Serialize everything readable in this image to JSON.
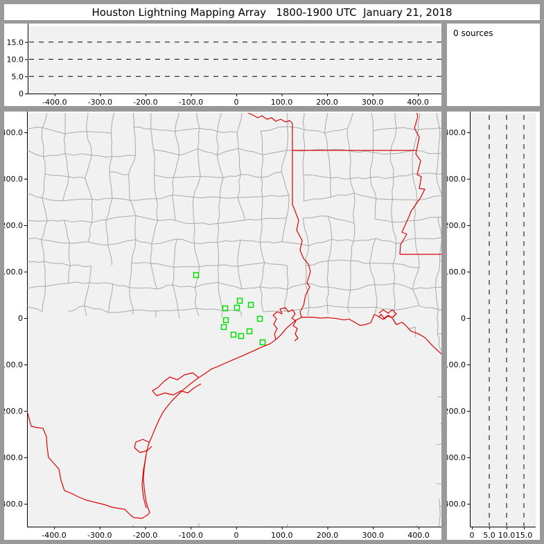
{
  "title": "Houston Lightning Mapping Array   1800-1900 UTC  January 21, 2018",
  "status": {
    "sources_label": "0 sources"
  },
  "colors": {
    "frame": "#999999",
    "panel_bg": "#ffffff",
    "plot_bg": "#f1f1f1",
    "axis": "#000000",
    "grid_dash": "#000000",
    "county": "#a8a8a8",
    "state_border": "#dd0000",
    "station": "#00dd00"
  },
  "alt_ew_panel": {
    "x_ticks": [
      -400,
      -300,
      -200,
      -100,
      0,
      100,
      200,
      300,
      400
    ],
    "x_tick_labels": [
      "-400.0",
      "-300.0",
      "-200.0",
      "-100.0",
      "0",
      "100.0",
      "200.0",
      "300.0",
      "400.0"
    ],
    "y_ticks": [
      0,
      5,
      10,
      15
    ],
    "y_tick_labels": [
      "0",
      "5.0",
      "10.0",
      "15.0"
    ],
    "dash_levels": [
      5,
      10,
      15
    ],
    "x_range": [
      -459.3,
      451.7
    ],
    "y_range": [
      0,
      19.6
    ]
  },
  "alt_ns_panel": {
    "x_ticks": [
      0,
      5,
      10,
      15
    ],
    "x_tick_labels": [
      "0",
      "5.0",
      "10.0",
      "15.0"
    ],
    "y_ticks": [
      400,
      300,
      200,
      100,
      0,
      -100,
      -200,
      -300,
      -400
    ],
    "y_tick_labels": [
      "400.0",
      "300.0",
      "200.0",
      "100.0",
      "0",
      "-100.0",
      "-200.0",
      "-300.0",
      "-400.0"
    ],
    "dash_levels": [
      5,
      10,
      15
    ],
    "x_range": [
      -0.6,
      18.4
    ],
    "y_range": [
      -449.3,
      441.8
    ]
  },
  "map_panel": {
    "x_ticks": [
      -400,
      -300,
      -200,
      -100,
      0,
      100,
      200,
      300,
      400
    ],
    "x_tick_labels": [
      "-400.0",
      "-300.0",
      "-200.0",
      "-100.0",
      "0",
      "100.0",
      "200.0",
      "300.0",
      "400.0"
    ],
    "y_ticks": [
      400,
      300,
      200,
      100,
      0,
      -100,
      -200,
      -300,
      -400
    ],
    "y_tick_labels": [
      "400.0",
      "300.0",
      "200.0",
      "100.0",
      "0",
      "-100.0",
      "-200.0",
      "-300.0",
      "-400.0"
    ],
    "x_range": [
      -459.3,
      451.7
    ],
    "y_range": [
      -449.3,
      441.8
    ],
    "stations_km": [
      [
        -88.2,
        92.5
      ],
      [
        7.6,
        37.3
      ],
      [
        31.9,
        28.4
      ],
      [
        1.5,
        22.4
      ],
      [
        -24.3,
        20.9
      ],
      [
        -22.8,
        -4.5
      ],
      [
        -27.4,
        -19.4
      ],
      [
        -6.1,
        -35.8
      ],
      [
        28.9,
        -28.4
      ],
      [
        10.6,
        -38.8
      ],
      [
        51.7,
        -1.5
      ],
      [
        57.8,
        -52.2
      ]
    ],
    "state_borders_km": [
      [
        [
          25.9,
          441.8
        ],
        [
          36.5,
          437.3
        ],
        [
          47.1,
          431.3
        ],
        [
          56.3,
          435.8
        ],
        [
          66.9,
          428.4
        ],
        [
          77.6,
          431.3
        ],
        [
          86.7,
          423.9
        ],
        [
          97.3,
          428.4
        ],
        [
          108,
          422.4
        ],
        [
          117.1,
          425.4
        ],
        [
          123.2,
          419.4
        ]
      ],
      [
        [
          123.2,
          419.4
        ],
        [
          123.2,
          244.8
        ],
        [
          129.3,
          229.9
        ],
        [
          136.9,
          210.4
        ],
        [
          132.3,
          189.6
        ],
        [
          144.5,
          167.2
        ],
        [
          139.9,
          146.3
        ],
        [
          147.5,
          128.4
        ],
        [
          158.2,
          116.4
        ],
        [
          162.7,
          100
        ],
        [
          155.1,
          76.1
        ],
        [
          161.2,
          67.2
        ],
        [
          152.1,
          49.3
        ],
        [
          147.5,
          26.9
        ],
        [
          139.9,
          13.4
        ],
        [
          143,
          1.5
        ]
      ],
      [
        [
          123.2,
          361.2
        ],
        [
          393.9,
          361.2
        ]
      ],
      [
        [
          393.9,
          449.3
        ],
        [
          398.5,
          434.3
        ],
        [
          390.9,
          409
        ],
        [
          401.5,
          389.6
        ],
        [
          393.9,
          353.7
        ],
        [
          404.6,
          338.8
        ],
        [
          397,
          309
        ],
        [
          406.1,
          304.5
        ],
        [
          401.5,
          279.1
        ],
        [
          413.7,
          277.6
        ],
        [
          404.6,
          259.7
        ],
        [
          383.3,
          229.9
        ],
        [
          378.7,
          217.9
        ],
        [
          363.5,
          185.1
        ],
        [
          374.1,
          180.6
        ],
        [
          360.5,
          158.2
        ],
        [
          358.9,
          137.3
        ]
      ],
      [
        [
          358.9,
          137.3
        ],
        [
          451.7,
          137.3
        ]
      ]
    ],
    "coastline_km": [
      [
        452,
        -79
      ],
      [
        431,
        -60
      ],
      [
        414,
        -42
      ],
      [
        400,
        -34
      ],
      [
        383,
        -28
      ],
      [
        370,
        -14
      ],
      [
        363,
        -9
      ],
      [
        352,
        -14
      ],
      [
        341,
        1
      ],
      [
        334,
        6
      ],
      [
        325,
        -2
      ],
      [
        318,
        8
      ],
      [
        313,
        3
      ],
      [
        303,
        8
      ],
      [
        295,
        -10
      ],
      [
        283,
        -14
      ],
      [
        272,
        -16
      ],
      [
        258,
        -8
      ],
      [
        247,
        -2
      ],
      [
        237,
        -4
      ],
      [
        220,
        -1
      ],
      [
        200,
        1
      ],
      [
        185,
        0
      ],
      [
        165,
        2
      ],
      [
        143,
        1.5
      ],
      [
        130,
        -5
      ],
      [
        120,
        -13
      ],
      [
        110,
        -22
      ],
      [
        102,
        -31
      ],
      [
        95,
        -39
      ],
      [
        87,
        -46
      ],
      [
        75,
        -55
      ],
      [
        52,
        -64
      ],
      [
        30,
        -74
      ],
      [
        14,
        -81
      ],
      [
        -5,
        -89
      ],
      [
        -24,
        -97
      ],
      [
        -40,
        -104
      ],
      [
        -55,
        -110
      ],
      [
        -68,
        -119
      ],
      [
        -82,
        -128
      ],
      [
        -100,
        -141
      ],
      [
        -116,
        -154
      ],
      [
        -129,
        -166
      ],
      [
        -141,
        -178
      ],
      [
        -152,
        -191
      ],
      [
        -161,
        -203
      ],
      [
        -169,
        -218
      ],
      [
        -176,
        -233
      ],
      [
        -184,
        -252
      ],
      [
        -192,
        -270
      ],
      [
        -196,
        -285
      ],
      [
        -199,
        -300
      ],
      [
        -202,
        -322
      ],
      [
        -204,
        -345
      ],
      [
        -202,
        -368
      ],
      [
        -199,
        -390
      ],
      [
        -195,
        -406
      ],
      [
        -190,
        -419
      ]
    ],
    "rio_grande_km": [
      [
        -459.3,
        -200
      ],
      [
        -450.2,
        -232.8
      ],
      [
        -438,
        -235.8
      ],
      [
        -424.3,
        -237.3
      ],
      [
        -416.7,
        -255.2
      ],
      [
        -415.2,
        -277.6
      ],
      [
        -412.2,
        -300
      ],
      [
        -401.5,
        -311.9
      ],
      [
        -389.4,
        -325.4
      ],
      [
        -384.8,
        -349.3
      ],
      [
        -377.2,
        -371.6
      ],
      [
        -362,
        -377.6
      ],
      [
        -346.8,
        -385.1
      ],
      [
        -328.5,
        -392.5
      ],
      [
        -290.5,
        -401.5
      ],
      [
        -272.2,
        -407.5
      ],
      [
        -244.9,
        -412
      ],
      [
        -232.7,
        -423.9
      ],
      [
        -225.1,
        -429.9
      ],
      [
        -206.8,
        -431.3
      ],
      [
        -194.7,
        -423.9
      ],
      [
        -190,
        -419
      ]
    ],
    "bays_km": [
      [
        [
          86.7,
          -46.3
        ],
        [
          83.7,
          -34.3
        ],
        [
          89.7,
          -22.4
        ],
        [
          82.1,
          -13.4
        ],
        [
          88.2,
          -1.5
        ],
        [
          80.6,
          6
        ],
        [
          89.7,
          13.4
        ],
        [
          100.4,
          9
        ],
        [
          95.8,
          19.4
        ],
        [
          108,
          22.4
        ],
        [
          114.1,
          13.4
        ],
        [
          123.2,
          17.9
        ],
        [
          129.3,
          9
        ],
        [
          121.7,
          0
        ],
        [
          130.8,
          -6
        ],
        [
          124.7,
          -16.4
        ],
        [
          133.8,
          -22.4
        ],
        [
          129.3,
          -34.3
        ],
        [
          135.4,
          -43.3
        ],
        [
          127.8,
          -49.3
        ]
      ],
      [
        [
          -77.6,
          -141.8
        ],
        [
          -91.3,
          -149.3
        ],
        [
          -106.5,
          -161.2
        ],
        [
          -121.7,
          -156.7
        ],
        [
          -138.4,
          -165.7
        ],
        [
          -156.7,
          -161.2
        ],
        [
          -174.9,
          -167.2
        ],
        [
          -184,
          -156.7
        ],
        [
          -171.9,
          -149.3
        ],
        [
          -159.7,
          -137.3
        ],
        [
          -146,
          -126.9
        ],
        [
          -129.3,
          -132.8
        ],
        [
          -114.1,
          -122.4
        ],
        [
          -95.8,
          -117.9
        ],
        [
          -82.1,
          -128.4
        ]
      ],
      [
        [
          -185.6,
          -276.1
        ],
        [
          -194.7,
          -285.1
        ],
        [
          -211.4,
          -289.6
        ],
        [
          -223.6,
          -279.1
        ],
        [
          -220.5,
          -267.2
        ],
        [
          -205.3,
          -261.2
        ],
        [
          -191.6,
          -267.2
        ]
      ],
      [
        [
          -197.7,
          -294
        ],
        [
          -203.8,
          -326.9
        ],
        [
          -206.8,
          -359.7
        ],
        [
          -203.8,
          -386.6
        ],
        [
          -197.7,
          -409
        ]
      ],
      [
        [
          313,
          10.4
        ],
        [
          322.4,
          17.9
        ],
        [
          333,
          10.4
        ],
        [
          342.2,
          17.9
        ],
        [
          351.3,
          9
        ],
        [
          342.2,
          1.5
        ],
        [
          330,
          4.5
        ],
        [
          322,
          -3
        ],
        [
          313,
          3
        ]
      ]
    ],
    "gulf_close_km": [
      [
        -186,
        -449.3
      ],
      [
        443,
        -449.3
      ],
      [
        452,
        -85
      ]
    ],
    "mexico_close_km": [
      [
        -186,
        -449.3
      ],
      [
        -459.3,
        -449.3
      ]
    ],
    "counties": {
      "cell_km": 48,
      "node_jitter_km": 9,
      "wiggle_km": 2.5,
      "skip_probability": 0.1,
      "seed": 9
    }
  }
}
